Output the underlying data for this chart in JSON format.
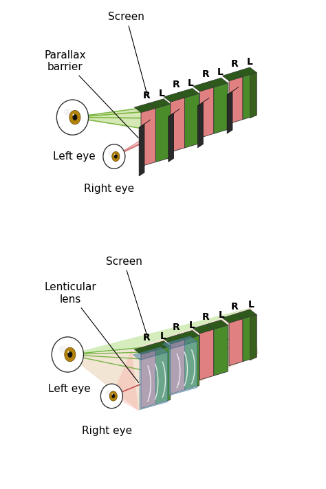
{
  "bg_color": "#ffffff",
  "top_diagram": {
    "screen_label": "Screen",
    "barrier_label": "Parallax\nbarrier",
    "left_eye_label": "Left eye",
    "right_eye_label": "Right eye",
    "green_color": "#4a8c2a",
    "red_color": "#e08080",
    "dark_green": "#2d5a1a",
    "barrier_color": "#2a2a2a",
    "barrier_side": "#444444",
    "pink_ray_color": "#ff9999",
    "green_ray_color": "#88cc44"
  },
  "bottom_diagram": {
    "screen_label": "Screen",
    "lens_label": "Lenticular\nlens",
    "left_eye_label": "Left eye",
    "right_eye_label": "Right eye",
    "green_color": "#4a8c2a",
    "red_color": "#e08080",
    "dark_green": "#2d5a1a",
    "blue_color": "#88bbdd",
    "blue_dark": "#5588aa",
    "orange_color": "#cc9955",
    "pink_ray_color": "#ff9999",
    "green_ray_color": "#88cc44"
  }
}
